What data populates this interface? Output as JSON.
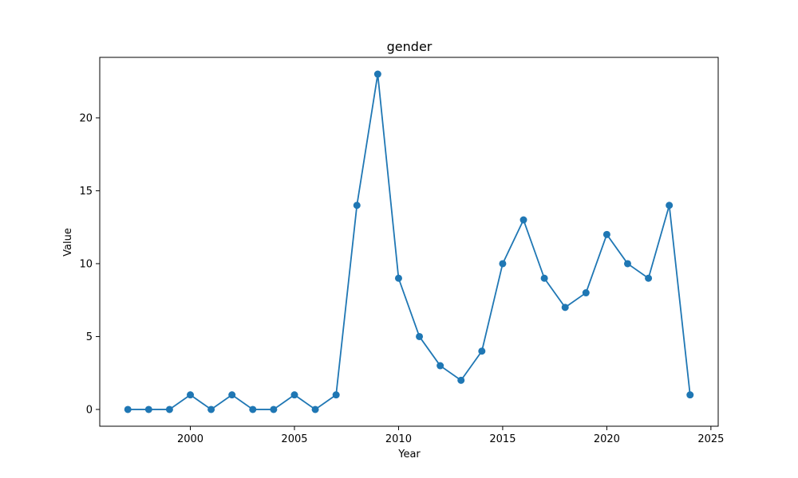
{
  "chart_data": {
    "type": "line",
    "title": "gender",
    "xlabel": "Year",
    "ylabel": "Value",
    "x": [
      1997,
      1998,
      1999,
      2000,
      2001,
      2002,
      2003,
      2004,
      2005,
      2006,
      2007,
      2008,
      2009,
      2010,
      2011,
      2012,
      2013,
      2014,
      2015,
      2016,
      2017,
      2018,
      2019,
      2020,
      2021,
      2022,
      2023,
      2024
    ],
    "series": [
      {
        "name": "gender",
        "values": [
          0,
          0,
          0,
          1,
          0,
          1,
          0,
          0,
          1,
          0,
          1,
          14,
          23,
          9,
          5,
          3,
          2,
          4,
          10,
          13,
          9,
          7,
          8,
          12,
          10,
          9,
          14,
          1
        ]
      }
    ],
    "xlim": [
      1995.65,
      2025.35
    ],
    "ylim": [
      -1.15,
      24.15
    ],
    "xticks": [
      2000,
      2005,
      2010,
      2015,
      2020,
      2025
    ],
    "xtick_labels": [
      "2000",
      "2005",
      "2010",
      "2015",
      "2020",
      "2025"
    ],
    "yticks": [
      0,
      5,
      10,
      15,
      20
    ],
    "ytick_labels": [
      "0",
      "5",
      "10",
      "15",
      "20"
    ],
    "grid": false,
    "markers": true,
    "color": "#1f77b4"
  }
}
